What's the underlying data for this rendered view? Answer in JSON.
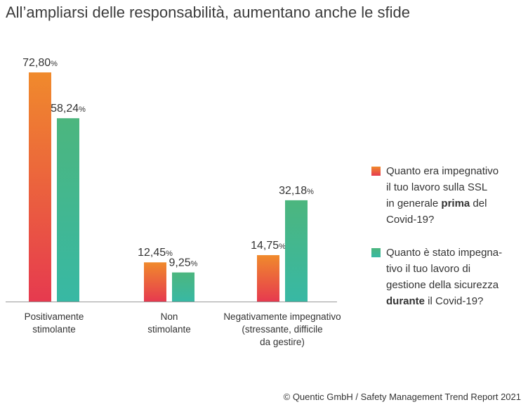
{
  "colors": {
    "prima_top": "#f08a2c",
    "prima_bottom": "#e63a4f",
    "durante_top": "#4cb67e",
    "durante_bottom": "#38b8a4",
    "axis": "#9a9a9a"
  },
  "chart_data": {
    "type": "bar",
    "title": "All’ampliarsi delle responsabilità, aumentano anche le sfide",
    "categories": [
      [
        "Positivamente",
        "stimolante"
      ],
      [
        "Non",
        "stimolante"
      ],
      [
        "Negativamente impegnativo",
        "(stressante, difficile",
        "da gestire)"
      ]
    ],
    "value_suffix": "%",
    "decimal_separator": ",",
    "ylim": [
      0,
      80
    ],
    "grid": false,
    "legend_position": "right",
    "series": [
      {
        "key": "prima",
        "legend_lines": [
          [
            {
              "t": "Quanto era impegnativo"
            }
          ],
          [
            {
              "t": "il tuo lavoro sulla SSL"
            }
          ],
          [
            {
              "t": "in generale "
            },
            {
              "t": "prima",
              "b": true
            },
            {
              "t": " del"
            }
          ],
          [
            {
              "t": "Covid-19?"
            }
          ]
        ],
        "values": [
          72.8,
          12.45,
          14.75
        ]
      },
      {
        "key": "durante",
        "legend_lines": [
          [
            {
              "t": "Quanto è stato impegna-"
            }
          ],
          [
            {
              "t": "tivo il tuo lavoro di"
            }
          ],
          [
            {
              "t": "gestione della sicurezza"
            }
          ],
          [
            {
              "t": "durante",
              "b": true
            },
            {
              "t": " il Covid-19?"
            }
          ]
        ],
        "values": [
          58.24,
          9.25,
          32.18
        ]
      }
    ]
  },
  "footer": {
    "credit": "© Quentic GmbH / Safety Management Trend Report 2021"
  }
}
